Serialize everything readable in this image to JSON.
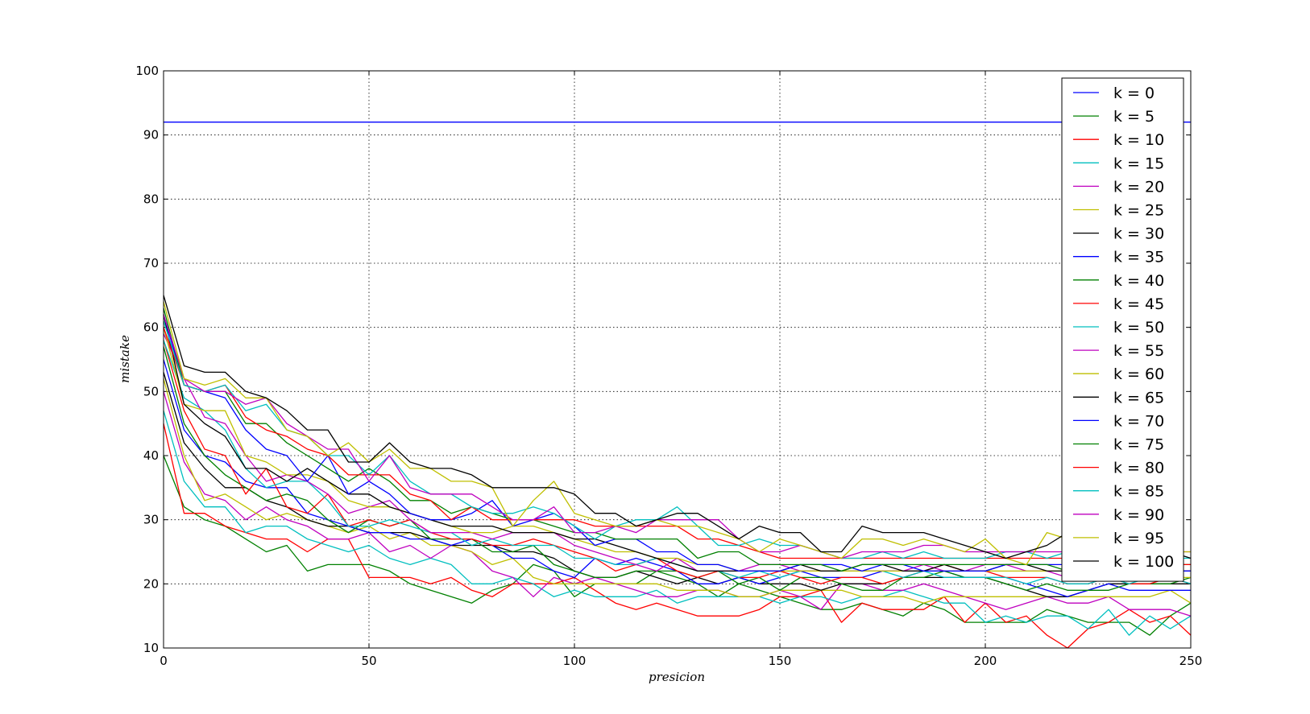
{
  "chart_data": {
    "type": "line",
    "title": "",
    "xlabel": "presicion",
    "ylabel": "mistake",
    "xlim": [
      0,
      250
    ],
    "ylim": [
      10,
      100
    ],
    "xticks": [
      0,
      50,
      100,
      150,
      200,
      250
    ],
    "yticks": [
      10,
      20,
      30,
      40,
      50,
      60,
      70,
      80,
      90,
      100
    ],
    "grid": true,
    "legend_position": "top-right",
    "x": [
      0,
      5,
      10,
      15,
      20,
      25,
      30,
      35,
      40,
      45,
      50,
      55,
      60,
      65,
      70,
      75,
      80,
      85,
      90,
      95,
      100,
      105,
      110,
      115,
      120,
      125,
      130,
      135,
      140,
      145,
      150,
      155,
      160,
      165,
      170,
      175,
      180,
      185,
      190,
      195,
      200,
      205,
      210,
      215,
      220,
      225,
      230,
      235,
      240,
      245,
      250
    ],
    "series": [
      {
        "name": "k = 0",
        "color": "#0000ff",
        "values": [
          92,
          92,
          92,
          92,
          92,
          92,
          92,
          92,
          92,
          92,
          92,
          92,
          92,
          92,
          92,
          92,
          92,
          92,
          92,
          92,
          92,
          92,
          92,
          92,
          92,
          92,
          92,
          92,
          92,
          92,
          92,
          92,
          92,
          92,
          92,
          92,
          92,
          92,
          92,
          92,
          92,
          92,
          92,
          92,
          92,
          92,
          92,
          92,
          92,
          92,
          92
        ]
      },
      {
        "name": "k = 5",
        "color": "#008000",
        "values": [
          40,
          32,
          30,
          29,
          27,
          25,
          26,
          22,
          23,
          23,
          23,
          22,
          20,
          19,
          18,
          17,
          19,
          20,
          23,
          22,
          18,
          20,
          20,
          20,
          22,
          21,
          20,
          18,
          20,
          19,
          18,
          17,
          16,
          16,
          17,
          16,
          15,
          17,
          16,
          14,
          14,
          14,
          14,
          16,
          15,
          14,
          14,
          14,
          12,
          15,
          17
        ]
      },
      {
        "name": "k = 10",
        "color": "#ff0000",
        "values": [
          45,
          31,
          31,
          29,
          28,
          27,
          27,
          25,
          27,
          27,
          21,
          21,
          21,
          20,
          21,
          19,
          18,
          20,
          20,
          20,
          21,
          19,
          17,
          16,
          17,
          16,
          15,
          15,
          15,
          16,
          18,
          18,
          19,
          14,
          17,
          16,
          16,
          16,
          18,
          14,
          17,
          14,
          15,
          12,
          10,
          13,
          14,
          16,
          14,
          15,
          12
        ]
      },
      {
        "name": "k = 15",
        "color": "#00bfbf",
        "values": [
          47,
          36,
          32,
          32,
          28,
          29,
          29,
          27,
          26,
          25,
          26,
          24,
          23,
          24,
          23,
          20,
          20,
          21,
          20,
          18,
          19,
          18,
          18,
          18,
          19,
          17,
          18,
          18,
          18,
          18,
          17,
          18,
          18,
          17,
          18,
          18,
          19,
          18,
          17,
          17,
          14,
          15,
          14,
          15,
          15,
          13,
          16,
          12,
          15,
          13,
          15
        ]
      },
      {
        "name": "k = 20",
        "color": "#bf00bf",
        "values": [
          50,
          39,
          34,
          33,
          30,
          32,
          30,
          29,
          27,
          27,
          28,
          25,
          26,
          24,
          26,
          25,
          22,
          21,
          18,
          21,
          20,
          21,
          20,
          19,
          18,
          18,
          19,
          19,
          18,
          18,
          19,
          18,
          16,
          20,
          20,
          19,
          19,
          20,
          19,
          18,
          17,
          16,
          17,
          18,
          17,
          17,
          18,
          16,
          16,
          16,
          15
        ]
      },
      {
        "name": "k = 25",
        "color": "#bfbf00",
        "values": [
          52,
          40,
          33,
          34,
          32,
          30,
          31,
          30,
          29,
          28,
          29,
          27,
          28,
          26,
          26,
          25,
          23,
          24,
          21,
          20,
          20,
          20,
          20,
          20,
          20,
          19,
          19,
          19,
          18,
          18,
          19,
          19,
          19,
          19,
          18,
          18,
          18,
          17,
          18,
          18,
          18,
          18,
          18,
          18,
          18,
          18,
          18,
          18,
          18,
          19,
          17
        ]
      },
      {
        "name": "k = 30",
        "color": "#000000",
        "values": [
          53,
          42,
          38,
          35,
          35,
          33,
          32,
          30,
          29,
          29,
          28,
          28,
          28,
          27,
          26,
          26,
          26,
          25,
          25,
          24,
          22,
          21,
          21,
          22,
          21,
          20,
          21,
          20,
          21,
          20,
          20,
          20,
          19,
          20,
          20,
          20,
          21,
          21,
          21,
          21,
          21,
          20,
          19,
          18,
          18,
          19,
          20,
          20,
          20,
          20,
          20
        ]
      },
      {
        "name": "k = 35",
        "color": "#0000ff",
        "values": [
          55,
          44,
          40,
          39,
          36,
          35,
          35,
          31,
          30,
          29,
          28,
          28,
          27,
          27,
          26,
          27,
          26,
          24,
          24,
          22,
          21,
          24,
          23,
          24,
          23,
          22,
          20,
          20,
          21,
          20,
          21,
          22,
          21,
          21,
          21,
          22,
          22,
          22,
          22,
          21,
          21,
          21,
          20,
          19,
          18,
          19,
          20,
          19,
          19,
          19,
          19
        ]
      },
      {
        "name": "k = 40",
        "color": "#008000",
        "values": [
          57,
          45,
          40,
          37,
          35,
          33,
          34,
          33,
          30,
          28,
          30,
          29,
          30,
          27,
          27,
          27,
          25,
          25,
          26,
          23,
          22,
          21,
          21,
          22,
          22,
          22,
          21,
          22,
          20,
          21,
          19,
          21,
          21,
          20,
          19,
          19,
          21,
          21,
          22,
          21,
          21,
          20,
          19,
          20,
          19,
          19,
          19,
          20,
          20,
          20,
          21
        ]
      },
      {
        "name": "k = 45",
        "color": "#ff0000",
        "values": [
          58,
          47,
          41,
          40,
          34,
          38,
          32,
          31,
          34,
          29,
          30,
          29,
          30,
          28,
          27,
          27,
          26,
          26,
          27,
          26,
          25,
          24,
          22,
          23,
          24,
          22,
          21,
          22,
          21,
          21,
          22,
          21,
          20,
          21,
          21,
          20,
          21,
          22,
          23,
          22,
          22,
          21,
          21,
          21,
          20,
          20,
          21,
          20,
          20,
          21,
          20
        ]
      },
      {
        "name": "k = 50",
        "color": "#00bfbf",
        "values": [
          58,
          49,
          47,
          44,
          38,
          35,
          36,
          36,
          33,
          29,
          29,
          30,
          29,
          28,
          28,
          26,
          27,
          26,
          26,
          26,
          24,
          24,
          23,
          23,
          24,
          23,
          22,
          22,
          21,
          22,
          21,
          22,
          22,
          22,
          22,
          22,
          21,
          22,
          21,
          21,
          21,
          21,
          20,
          21,
          20,
          20,
          21,
          20,
          21,
          21,
          20
        ]
      },
      {
        "name": "k = 55",
        "color": "#bf00bf",
        "values": [
          59,
          52,
          46,
          45,
          40,
          36,
          37,
          36,
          34,
          31,
          32,
          33,
          30,
          28,
          28,
          28,
          27,
          28,
          28,
          28,
          26,
          25,
          24,
          23,
          22,
          24,
          22,
          22,
          22,
          23,
          23,
          22,
          22,
          22,
          22,
          22,
          22,
          23,
          22,
          22,
          23,
          23,
          22,
          22,
          21,
          21,
          22,
          22,
          22,
          22,
          22
        ]
      },
      {
        "name": "k = 60",
        "color": "#bfbf00",
        "values": [
          60,
          48,
          47,
          47,
          40,
          39,
          37,
          37,
          36,
          33,
          32,
          32,
          31,
          30,
          29,
          28,
          28,
          29,
          29,
          28,
          27,
          26,
          25,
          25,
          24,
          24,
          23,
          23,
          22,
          22,
          22,
          22,
          22,
          22,
          22,
          22,
          22,
          22,
          22,
          22,
          22,
          22,
          22,
          22,
          22,
          22,
          21,
          21,
          21,
          21,
          21
        ]
      },
      {
        "name": "k = 65",
        "color": "#000000",
        "values": [
          62,
          48,
          45,
          43,
          38,
          38,
          36,
          38,
          36,
          34,
          34,
          32,
          31,
          30,
          29,
          29,
          29,
          28,
          28,
          28,
          27,
          27,
          26,
          25,
          24,
          23,
          22,
          22,
          22,
          22,
          22,
          23,
          22,
          22,
          23,
          23,
          22,
          22,
          23,
          22,
          22,
          23,
          23,
          22,
          22,
          22,
          22,
          22,
          22,
          22,
          22
        ]
      },
      {
        "name": "k = 70",
        "color": "#0000ff",
        "values": [
          62,
          51,
          50,
          49,
          44,
          41,
          40,
          36,
          40,
          34,
          36,
          34,
          31,
          30,
          30,
          31,
          33,
          29,
          30,
          31,
          29,
          26,
          27,
          27,
          25,
          25,
          23,
          23,
          22,
          22,
          22,
          23,
          23,
          23,
          22,
          23,
          23,
          22,
          22,
          22,
          22,
          23,
          23,
          23,
          23,
          22,
          22,
          22,
          22,
          22,
          22
        ]
      },
      {
        "name": "k = 75",
        "color": "#008000",
        "values": [
          63,
          51,
          50,
          50,
          45,
          45,
          42,
          40,
          38,
          36,
          38,
          36,
          33,
          33,
          31,
          32,
          31,
          30,
          30,
          29,
          28,
          28,
          27,
          27,
          27,
          27,
          24,
          25,
          25,
          23,
          23,
          23,
          23,
          22,
          23,
          23,
          23,
          23,
          23,
          23,
          23,
          23,
          23,
          23,
          22,
          22,
          23,
          23,
          23,
          23,
          23
        ]
      },
      {
        "name": "k = 80",
        "color": "#ff0000",
        "values": [
          60,
          51,
          50,
          51,
          46,
          44,
          43,
          41,
          40,
          37,
          37,
          37,
          34,
          33,
          30,
          32,
          30,
          30,
          30,
          30,
          30,
          29,
          29,
          29,
          29,
          29,
          27,
          27,
          26,
          25,
          24,
          24,
          24,
          24,
          24,
          24,
          24,
          24,
          24,
          24,
          24,
          24,
          24,
          24,
          24,
          24,
          24,
          23,
          23,
          23,
          23
        ]
      },
      {
        "name": "k = 85",
        "color": "#00bfbf",
        "values": [
          61,
          51,
          50,
          51,
          47,
          48,
          44,
          43,
          40,
          40,
          37,
          40,
          36,
          34,
          34,
          32,
          31,
          31,
          32,
          31,
          29,
          27,
          29,
          30,
          30,
          32,
          29,
          26,
          26,
          27,
          26,
          26,
          25,
          24,
          24,
          25,
          24,
          25,
          24,
          24,
          24,
          25,
          25,
          24,
          25,
          24,
          24,
          24,
          24,
          24,
          24
        ]
      },
      {
        "name": "k = 90",
        "color": "#bf00bf",
        "values": [
          62,
          52,
          50,
          50,
          48,
          49,
          45,
          43,
          41,
          41,
          36,
          40,
          35,
          34,
          34,
          34,
          32,
          30,
          30,
          32,
          28,
          28,
          29,
          28,
          30,
          30,
          30,
          30,
          27,
          25,
          25,
          26,
          25,
          24,
          25,
          25,
          25,
          26,
          26,
          25,
          25,
          25,
          25,
          25,
          25,
          25,
          25,
          25,
          25,
          25,
          25
        ]
      },
      {
        "name": "k = 95",
        "color": "#bfbf00",
        "values": [
          64,
          52,
          51,
          52,
          49,
          49,
          44,
          43,
          40,
          42,
          39,
          41,
          38,
          38,
          36,
          36,
          35,
          29,
          33,
          36,
          31,
          30,
          29,
          29,
          30,
          29,
          29,
          28,
          27,
          25,
          27,
          26,
          25,
          24,
          27,
          27,
          26,
          27,
          26,
          25,
          27,
          24,
          23,
          28,
          27,
          26,
          26,
          25,
          25,
          25,
          25
        ]
      },
      {
        "name": "k = 100",
        "color": "#000000",
        "values": [
          65,
          54,
          53,
          53,
          50,
          49,
          47,
          44,
          44,
          39,
          39,
          42,
          39,
          38,
          38,
          37,
          35,
          35,
          35,
          35,
          34,
          31,
          31,
          29,
          30,
          31,
          31,
          29,
          27,
          29,
          28,
          28,
          25,
          25,
          29,
          28,
          28,
          28,
          27,
          26,
          25,
          24,
          25,
          26,
          28,
          27,
          26,
          25,
          25,
          25,
          24
        ]
      }
    ]
  }
}
